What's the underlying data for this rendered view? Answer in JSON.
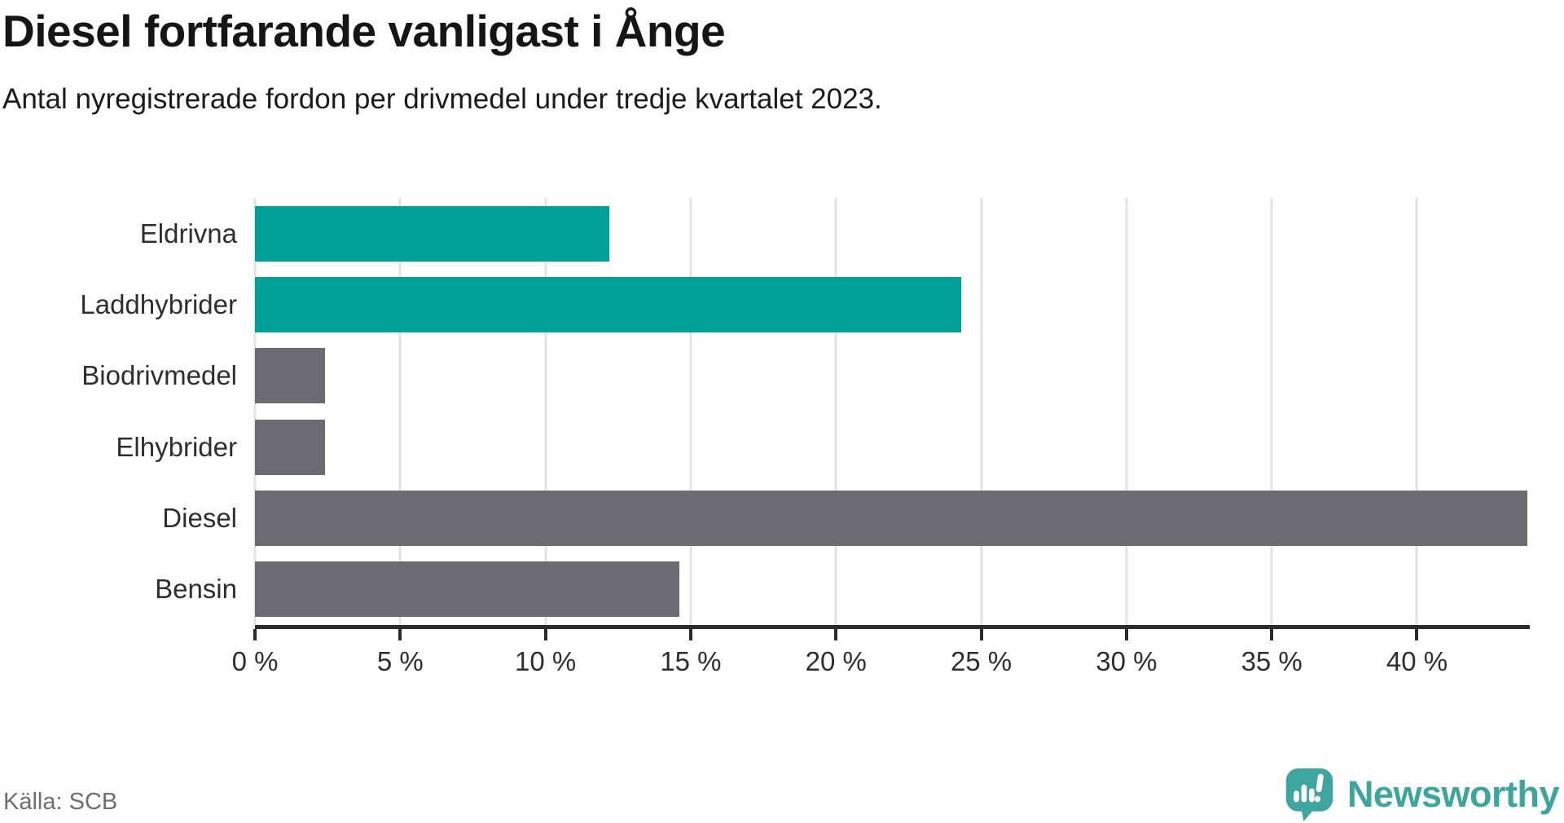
{
  "chart_data": {
    "type": "bar",
    "orientation": "horizontal",
    "title": "Diesel fortfarande vanligast i Ånge",
    "subtitle": "Antal nyregistrerade fordon per drivmedel under tredje kvartalet 2023.",
    "categories": [
      "Eldrivna",
      "Laddhybrider",
      "Biodrivmedel",
      "Elhybrider",
      "Diesel",
      "Bensin"
    ],
    "values": [
      12.2,
      24.3,
      2.4,
      2.4,
      43.8,
      14.6
    ],
    "unit": "%",
    "bar_colors": [
      "#00a096",
      "#00a096",
      "#6c6b71",
      "#6c6b71",
      "#6c6b71",
      "#6c6b71"
    ],
    "xlim": [
      0,
      43.8
    ],
    "xticks": [
      0,
      5,
      10,
      15,
      20,
      25,
      30,
      35,
      40
    ],
    "xtick_labels": [
      "0 %",
      "5 %",
      "10 %",
      "15 %",
      "20 %",
      "25 %",
      "30 %",
      "35 %",
      "40 %"
    ],
    "grid": true,
    "legend": "none"
  },
  "footer": {
    "source": "Källa: SCB",
    "brand": "Newsworthy"
  },
  "colors": {
    "teal_bar": "#00a096",
    "gray_bar": "#6c6b71",
    "gridline": "#e3e3e3",
    "axis": "#2b2b2b",
    "title_text": "#151515",
    "label_text": "#2e2e2e",
    "source_text": "#6e6e6e",
    "brand_teal": "#3ba59e"
  }
}
